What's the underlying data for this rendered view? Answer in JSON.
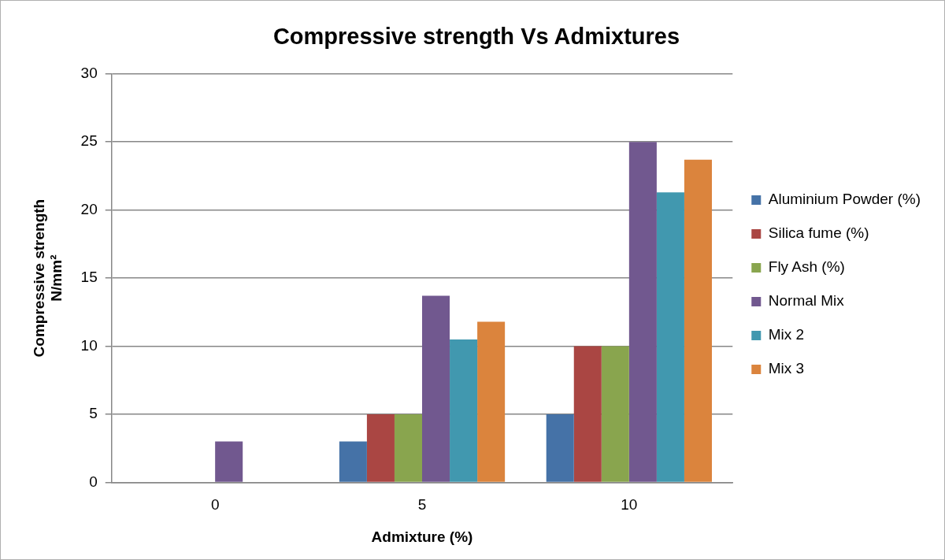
{
  "chart_data": {
    "type": "bar",
    "title": "Compressive strength Vs Admixtures",
    "xlabel": "Admixture (%)",
    "ylabel": "Compressive strength\nN/mm²",
    "categories": [
      "0",
      "5",
      "10"
    ],
    "series": [
      {
        "name": "Aluminium Powder (%)",
        "color": "#4572a7",
        "values": [
          0,
          3,
          5
        ]
      },
      {
        "name": "Silica fume (%)",
        "color": "#aa4643",
        "values": [
          0,
          5,
          10
        ]
      },
      {
        "name": "Fly Ash (%)",
        "color": "#89a54e",
        "values": [
          0,
          5,
          10
        ]
      },
      {
        "name": "Normal Mix",
        "color": "#71588f",
        "values": [
          3,
          13.7,
          25
        ]
      },
      {
        "name": "Mix 2",
        "color": "#4198af",
        "values": [
          0,
          10.5,
          21.3
        ]
      },
      {
        "name": "Mix 3",
        "color": "#db843d",
        "values": [
          0,
          11.8,
          23.7
        ]
      }
    ],
    "ylim": [
      0,
      30
    ],
    "yticks": [
      0,
      5,
      10,
      15,
      20,
      25,
      30
    ],
    "grid": "y",
    "legend": "right"
  }
}
